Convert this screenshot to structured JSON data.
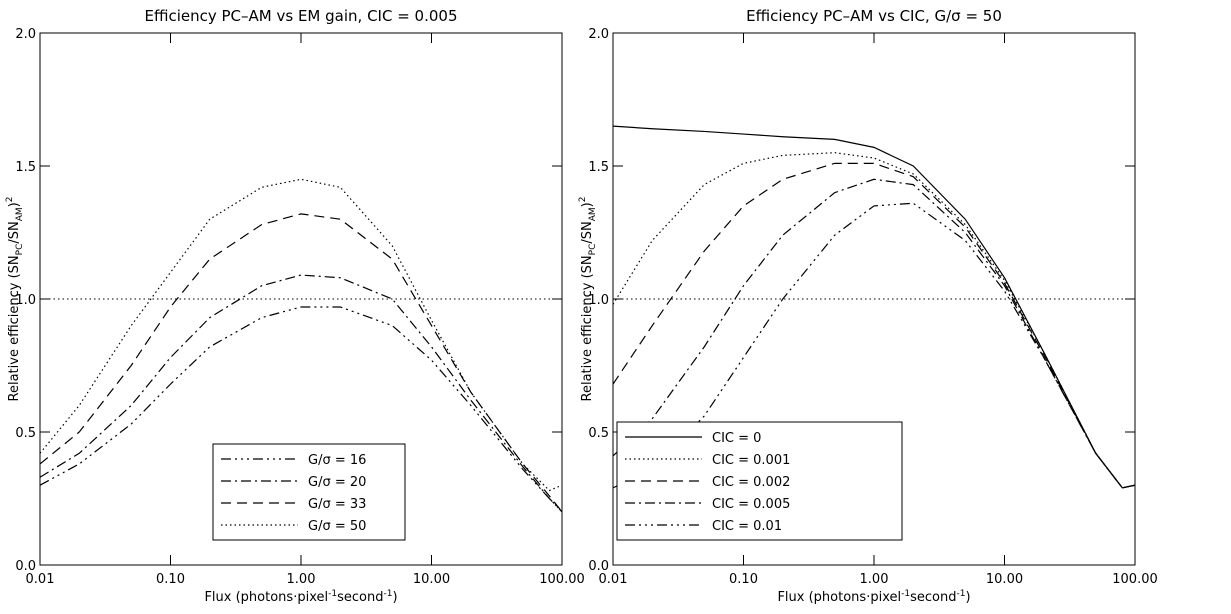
{
  "chart_data": [
    {
      "type": "line",
      "title": "Efficiency PC–AM vs EM gain, CIC = 0.005",
      "xlabel_parts": [
        "Flux (photons",
        "·",
        "pixel",
        "-1",
        "second",
        "-1",
        ")"
      ],
      "ylabel_parts": [
        "Relative efficiency (SN",
        "PC",
        "/SN",
        "AM",
        ")",
        "2"
      ],
      "x": [
        0.01,
        0.02,
        0.05,
        0.1,
        0.2,
        0.5,
        1,
        2,
        5,
        10,
        20,
        50,
        80,
        100
      ],
      "log_x": true,
      "xlim": [
        0.01,
        100
      ],
      "ylim": [
        0,
        2
      ],
      "xticks": [
        {
          "value": 0.01,
          "label": "0.01"
        },
        {
          "value": 0.1,
          "label": "0.10"
        },
        {
          "value": 1,
          "label": "1.00"
        },
        {
          "value": 10,
          "label": "10.00"
        },
        {
          "value": 100,
          "label": "100.00"
        }
      ],
      "yticks": [
        {
          "value": 0,
          "label": "0.0"
        },
        {
          "value": 0.5,
          "label": "0.5"
        },
        {
          "value": 1,
          "label": "1.0"
        },
        {
          "value": 1.5,
          "label": "1.5"
        },
        {
          "value": 2,
          "label": "2.0"
        }
      ],
      "reference_line": 1,
      "legend": "lower center",
      "series": [
        {
          "name": "G/σ = 16",
          "color": "#000000",
          "dash": "dash-dot-dot-dot",
          "values": [
            0.3,
            0.38,
            0.53,
            0.68,
            0.82,
            0.93,
            0.97,
            0.97,
            0.9,
            0.77,
            0.6,
            0.36,
            0.25,
            0.2
          ]
        },
        {
          "name": "G/σ = 20",
          "color": "#000000",
          "dash": "dash-dot",
          "values": [
            0.33,
            0.42,
            0.6,
            0.78,
            0.93,
            1.05,
            1.09,
            1.08,
            1.0,
            0.82,
            0.62,
            0.37,
            0.25,
            0.2
          ]
        },
        {
          "name": "G/σ = 33",
          "color": "#000000",
          "dash": "dashed",
          "values": [
            0.38,
            0.5,
            0.75,
            0.97,
            1.15,
            1.28,
            1.32,
            1.3,
            1.15,
            0.9,
            0.65,
            0.38,
            0.26,
            0.2
          ]
        },
        {
          "name": "G/σ = 50",
          "color": "#000000",
          "dash": "dotted",
          "values": [
            0.42,
            0.6,
            0.9,
            1.1,
            1.3,
            1.42,
            1.45,
            1.42,
            1.2,
            0.92,
            0.65,
            0.38,
            0.28,
            0.3
          ]
        }
      ]
    },
    {
      "type": "line",
      "title": "Efficiency PC–AM vs CIC, G/σ = 50",
      "xlabel_parts": [
        "Flux (photons",
        "·",
        "pixel",
        "-1",
        "second",
        "-1",
        ")"
      ],
      "ylabel_parts": [
        "Relative efficiency (SN",
        "PC",
        "/SN",
        "AM",
        ")",
        "2"
      ],
      "x": [
        0.01,
        0.02,
        0.05,
        0.1,
        0.2,
        0.5,
        1,
        2,
        5,
        10,
        20,
        50,
        80,
        100
      ],
      "log_x": true,
      "xlim": [
        0.01,
        100
      ],
      "ylim": [
        0,
        2
      ],
      "xticks": [
        {
          "value": 0.01,
          "label": "0.01"
        },
        {
          "value": 0.1,
          "label": "0.10"
        },
        {
          "value": 1,
          "label": "1.00"
        },
        {
          "value": 10,
          "label": "10.00"
        },
        {
          "value": 100,
          "label": "100.00"
        }
      ],
      "yticks": [
        {
          "value": 0,
          "label": "0.0"
        },
        {
          "value": 0.5,
          "label": "0.5"
        },
        {
          "value": 1,
          "label": "1.0"
        },
        {
          "value": 1.5,
          "label": "1.5"
        },
        {
          "value": 2,
          "label": "2.0"
        }
      ],
      "reference_line": 1,
      "legend": "lower left",
      "series": [
        {
          "name": "CIC = 0",
          "color": "#000000",
          "dash": "solid",
          "values": [
            1.65,
            1.64,
            1.63,
            1.62,
            1.61,
            1.6,
            1.57,
            1.5,
            1.3,
            1.08,
            0.8,
            0.42,
            0.29,
            0.3
          ]
        },
        {
          "name": "CIC = 0.001",
          "color": "#000000",
          "dash": "dotted",
          "values": [
            0.98,
            1.22,
            1.43,
            1.51,
            1.54,
            1.55,
            1.53,
            1.47,
            1.28,
            1.07,
            0.8,
            0.42,
            0.29,
            0.3
          ]
        },
        {
          "name": "CIC = 0.002",
          "color": "#000000",
          "dash": "dashed",
          "values": [
            0.68,
            0.9,
            1.18,
            1.35,
            1.45,
            1.51,
            1.51,
            1.46,
            1.27,
            1.06,
            0.79,
            0.42,
            0.29,
            0.3
          ]
        },
        {
          "name": "CIC = 0.005",
          "color": "#000000",
          "dash": "dash-dot",
          "values": [
            0.41,
            0.55,
            0.82,
            1.05,
            1.24,
            1.4,
            1.45,
            1.43,
            1.25,
            1.05,
            0.78,
            0.42,
            0.29,
            0.3
          ]
        },
        {
          "name": "CIC = 0.01",
          "color": "#000000",
          "dash": "dash-dot-dot-dot",
          "values": [
            0.29,
            0.36,
            0.56,
            0.78,
            1.0,
            1.24,
            1.35,
            1.36,
            1.22,
            1.03,
            0.78,
            0.42,
            0.29,
            0.3
          ]
        }
      ]
    }
  ]
}
